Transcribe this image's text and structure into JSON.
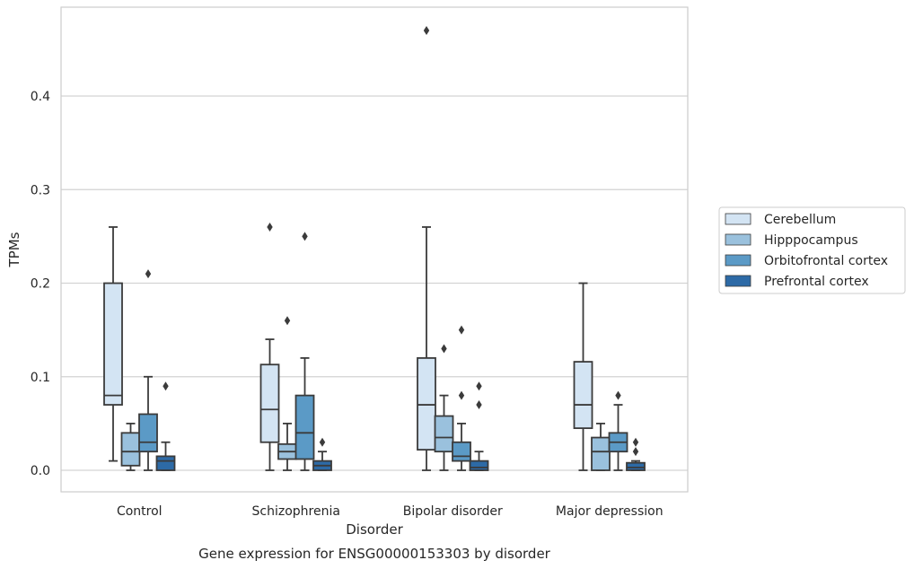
{
  "chart_data": {
    "type": "boxplot",
    "xlabel": "Disorder",
    "ylabel": "TPMs",
    "caption": "Gene expression for ENSG00000153303 by disorder",
    "ylim": [
      -0.023,
      0.495
    ],
    "yticks": [
      0.0,
      0.1,
      0.2,
      0.3,
      0.4
    ],
    "ytick_labels": [
      "0.0",
      "0.1",
      "0.2",
      "0.3",
      "0.4"
    ],
    "grid": "horizontal",
    "legend_position": "right",
    "categories": [
      "Control",
      "Schizophrenia",
      "Bipolar disorder",
      "Major depression"
    ],
    "series": [
      {
        "name": "Cerebellum",
        "color": "#d3e4f3",
        "boxes": [
          {
            "whislo": 0.01,
            "q1": 0.07,
            "med": 0.08,
            "q3": 0.2,
            "whishi": 0.26,
            "fliers": []
          },
          {
            "whislo": 0.0,
            "q1": 0.03,
            "med": 0.065,
            "q3": 0.113,
            "whishi": 0.14,
            "fliers": [
              0.26
            ]
          },
          {
            "whislo": 0.0,
            "q1": 0.022,
            "med": 0.07,
            "q3": 0.12,
            "whishi": 0.26,
            "fliers": [
              0.47
            ]
          },
          {
            "whislo": 0.0,
            "q1": 0.045,
            "med": 0.07,
            "q3": 0.116,
            "whishi": 0.2,
            "fliers": []
          }
        ]
      },
      {
        "name": "Hipppocampus",
        "color": "#9ac1dd",
        "boxes": [
          {
            "whislo": 0.0,
            "q1": 0.005,
            "med": 0.02,
            "q3": 0.04,
            "whishi": 0.05,
            "fliers": []
          },
          {
            "whislo": 0.0,
            "q1": 0.012,
            "med": 0.02,
            "q3": 0.028,
            "whishi": 0.05,
            "fliers": [
              0.16
            ]
          },
          {
            "whislo": 0.0,
            "q1": 0.02,
            "med": 0.035,
            "q3": 0.058,
            "whishi": 0.08,
            "fliers": [
              0.13
            ]
          },
          {
            "whislo": 0.0,
            "q1": 0.0,
            "med": 0.02,
            "q3": 0.035,
            "whishi": 0.05,
            "fliers": []
          }
        ]
      },
      {
        "name": "Orbitofrontal cortex",
        "color": "#5b9ac6",
        "boxes": [
          {
            "whislo": 0.0,
            "q1": 0.02,
            "med": 0.03,
            "q3": 0.06,
            "whishi": 0.1,
            "fliers": [
              0.21
            ]
          },
          {
            "whislo": 0.0,
            "q1": 0.012,
            "med": 0.04,
            "q3": 0.08,
            "whishi": 0.12,
            "fliers": [
              0.25
            ]
          },
          {
            "whislo": 0.0,
            "q1": 0.01,
            "med": 0.015,
            "q3": 0.03,
            "whishi": 0.05,
            "fliers": [
              0.08,
              0.15
            ]
          },
          {
            "whislo": 0.0,
            "q1": 0.02,
            "med": 0.03,
            "q3": 0.04,
            "whishi": 0.07,
            "fliers": [
              0.08
            ]
          }
        ]
      },
      {
        "name": "Prefrontal cortex",
        "color": "#2d6aa6",
        "boxes": [
          {
            "whislo": 0.0,
            "q1": 0.0,
            "med": 0.01,
            "q3": 0.015,
            "whishi": 0.03,
            "fliers": [
              0.09
            ]
          },
          {
            "whislo": 0.0,
            "q1": 0.0,
            "med": 0.005,
            "q3": 0.01,
            "whishi": 0.02,
            "fliers": [
              0.03
            ]
          },
          {
            "whislo": 0.0,
            "q1": 0.0,
            "med": 0.003,
            "q3": 0.01,
            "whishi": 0.02,
            "fliers": [
              0.07,
              0.09
            ]
          },
          {
            "whislo": 0.0,
            "q1": 0.0,
            "med": 0.003,
            "q3": 0.008,
            "whishi": 0.01,
            "fliers": [
              0.02,
              0.03
            ]
          }
        ]
      }
    ]
  }
}
